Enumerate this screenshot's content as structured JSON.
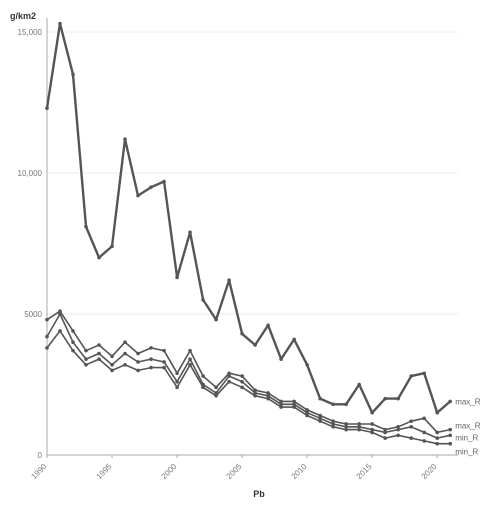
{
  "chart_data": {
    "type": "line",
    "title": "",
    "ylabel": "g/km2",
    "xlabel": "Pb",
    "x": [
      1990,
      1991,
      1992,
      1993,
      1994,
      1995,
      1996,
      1997,
      1998,
      1999,
      2000,
      2001,
      2002,
      2003,
      2004,
      2005,
      2006,
      2007,
      2008,
      2009,
      2010,
      2011,
      2012,
      2013,
      2014,
      2015,
      2016,
      2017,
      2018,
      2019,
      2020,
      2021
    ],
    "xticks": [
      "1990",
      "1995",
      "2000",
      "2005",
      "2010",
      "2015",
      "2020"
    ],
    "xlim": [
      1990,
      2021.6
    ],
    "yticks": [
      "0",
      "5000",
      "10,000",
      "15,000"
    ],
    "ylim": [
      0,
      15500
    ],
    "grid": true,
    "legend_position": "right-end",
    "colors": {
      "series": "#555555",
      "grid": "#eeeeee",
      "axis": "#aaaaaa"
    },
    "series": [
      {
        "name": "max_R",
        "values": [
          12300,
          15300,
          13500,
          8100,
          7000,
          7400,
          11200,
          9200,
          9500,
          9700,
          6300,
          7900,
          5500,
          4800,
          6200,
          4300,
          3900,
          4600,
          3400,
          4100,
          3200,
          2000,
          1800,
          1800,
          2500,
          1500,
          2000,
          2000,
          2800,
          2900,
          1500,
          1900
        ]
      },
      {
        "name": "max_R",
        "values": [
          4800,
          5100,
          4400,
          3700,
          3900,
          3500,
          4000,
          3600,
          3800,
          3700,
          2900,
          3700,
          2800,
          2400,
          2900,
          2800,
          2300,
          2200,
          1900,
          1900,
          1600,
          1400,
          1200,
          1100,
          1100,
          1100,
          900,
          1000,
          1200,
          1300,
          800,
          900
        ]
      },
      {
        "name": "min_R",
        "values": [
          4200,
          5000,
          4000,
          3400,
          3600,
          3200,
          3600,
          3300,
          3400,
          3300,
          2600,
          3400,
          2500,
          2200,
          2800,
          2600,
          2200,
          2100,
          1800,
          1800,
          1500,
          1300,
          1100,
          1000,
          1000,
          900,
          800,
          900,
          1000,
          800,
          600,
          700
        ]
      },
      {
        "name": "min_R",
        "values": [
          3800,
          4400,
          3700,
          3200,
          3400,
          3000,
          3200,
          3000,
          3100,
          3100,
          2400,
          3200,
          2400,
          2100,
          2600,
          2400,
          2100,
          2000,
          1700,
          1700,
          1400,
          1200,
          1000,
          900,
          900,
          800,
          600,
          700,
          600,
          500,
          400,
          400
        ]
      }
    ]
  }
}
